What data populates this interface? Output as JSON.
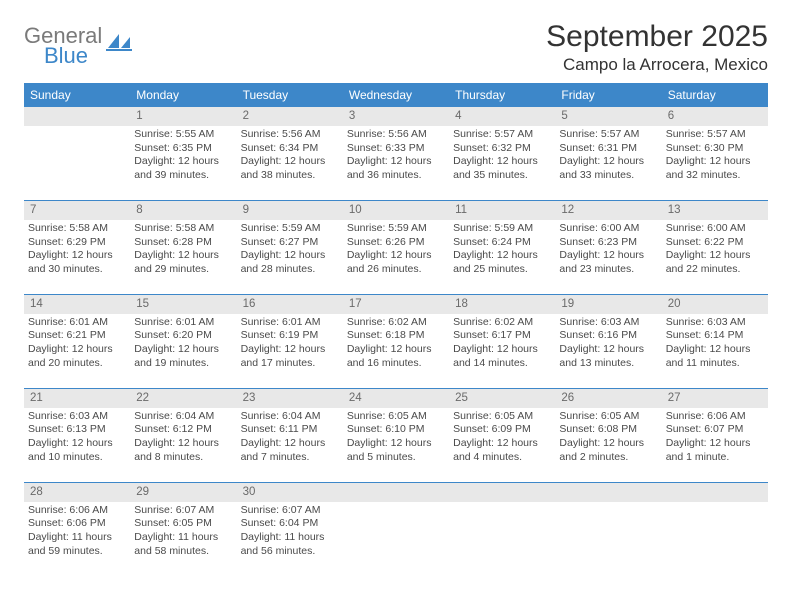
{
  "brand": {
    "line1": "General",
    "line2": "Blue",
    "logo_fill": "#3d87c9"
  },
  "title": {
    "month": "September 2025",
    "location": "Campo la Arrocera, Mexico"
  },
  "styles": {
    "header_bg": "#3d87c9",
    "header_text": "#ffffff",
    "daynum_bg": "#e8e8e8",
    "daynum_text": "#6a6a6a",
    "cell_text": "#4a4a4a",
    "title_text": "#333333",
    "rule_color": "#3d87c9",
    "logo_gray": "#7a7a7a",
    "header_fontsize": 12,
    "daynum_fontsize": 11.5,
    "body_fontsize": 10.5,
    "month_fontsize": 30,
    "location_fontsize": 17
  },
  "columns": [
    "Sunday",
    "Monday",
    "Tuesday",
    "Wednesday",
    "Thursday",
    "Friday",
    "Saturday"
  ],
  "weeks": [
    [
      null,
      {
        "n": "1",
        "sunrise": "Sunrise: 5:55 AM",
        "sunset": "Sunset: 6:35 PM",
        "day": "Daylight: 12 hours and 39 minutes."
      },
      {
        "n": "2",
        "sunrise": "Sunrise: 5:56 AM",
        "sunset": "Sunset: 6:34 PM",
        "day": "Daylight: 12 hours and 38 minutes."
      },
      {
        "n": "3",
        "sunrise": "Sunrise: 5:56 AM",
        "sunset": "Sunset: 6:33 PM",
        "day": "Daylight: 12 hours and 36 minutes."
      },
      {
        "n": "4",
        "sunrise": "Sunrise: 5:57 AM",
        "sunset": "Sunset: 6:32 PM",
        "day": "Daylight: 12 hours and 35 minutes."
      },
      {
        "n": "5",
        "sunrise": "Sunrise: 5:57 AM",
        "sunset": "Sunset: 6:31 PM",
        "day": "Daylight: 12 hours and 33 minutes."
      },
      {
        "n": "6",
        "sunrise": "Sunrise: 5:57 AM",
        "sunset": "Sunset: 6:30 PM",
        "day": "Daylight: 12 hours and 32 minutes."
      }
    ],
    [
      {
        "n": "7",
        "sunrise": "Sunrise: 5:58 AM",
        "sunset": "Sunset: 6:29 PM",
        "day": "Daylight: 12 hours and 30 minutes."
      },
      {
        "n": "8",
        "sunrise": "Sunrise: 5:58 AM",
        "sunset": "Sunset: 6:28 PM",
        "day": "Daylight: 12 hours and 29 minutes."
      },
      {
        "n": "9",
        "sunrise": "Sunrise: 5:59 AM",
        "sunset": "Sunset: 6:27 PM",
        "day": "Daylight: 12 hours and 28 minutes."
      },
      {
        "n": "10",
        "sunrise": "Sunrise: 5:59 AM",
        "sunset": "Sunset: 6:26 PM",
        "day": "Daylight: 12 hours and 26 minutes."
      },
      {
        "n": "11",
        "sunrise": "Sunrise: 5:59 AM",
        "sunset": "Sunset: 6:24 PM",
        "day": "Daylight: 12 hours and 25 minutes."
      },
      {
        "n": "12",
        "sunrise": "Sunrise: 6:00 AM",
        "sunset": "Sunset: 6:23 PM",
        "day": "Daylight: 12 hours and 23 minutes."
      },
      {
        "n": "13",
        "sunrise": "Sunrise: 6:00 AM",
        "sunset": "Sunset: 6:22 PM",
        "day": "Daylight: 12 hours and 22 minutes."
      }
    ],
    [
      {
        "n": "14",
        "sunrise": "Sunrise: 6:01 AM",
        "sunset": "Sunset: 6:21 PM",
        "day": "Daylight: 12 hours and 20 minutes."
      },
      {
        "n": "15",
        "sunrise": "Sunrise: 6:01 AM",
        "sunset": "Sunset: 6:20 PM",
        "day": "Daylight: 12 hours and 19 minutes."
      },
      {
        "n": "16",
        "sunrise": "Sunrise: 6:01 AM",
        "sunset": "Sunset: 6:19 PM",
        "day": "Daylight: 12 hours and 17 minutes."
      },
      {
        "n": "17",
        "sunrise": "Sunrise: 6:02 AM",
        "sunset": "Sunset: 6:18 PM",
        "day": "Daylight: 12 hours and 16 minutes."
      },
      {
        "n": "18",
        "sunrise": "Sunrise: 6:02 AM",
        "sunset": "Sunset: 6:17 PM",
        "day": "Daylight: 12 hours and 14 minutes."
      },
      {
        "n": "19",
        "sunrise": "Sunrise: 6:03 AM",
        "sunset": "Sunset: 6:16 PM",
        "day": "Daylight: 12 hours and 13 minutes."
      },
      {
        "n": "20",
        "sunrise": "Sunrise: 6:03 AM",
        "sunset": "Sunset: 6:14 PM",
        "day": "Daylight: 12 hours and 11 minutes."
      }
    ],
    [
      {
        "n": "21",
        "sunrise": "Sunrise: 6:03 AM",
        "sunset": "Sunset: 6:13 PM",
        "day": "Daylight: 12 hours and 10 minutes."
      },
      {
        "n": "22",
        "sunrise": "Sunrise: 6:04 AM",
        "sunset": "Sunset: 6:12 PM",
        "day": "Daylight: 12 hours and 8 minutes."
      },
      {
        "n": "23",
        "sunrise": "Sunrise: 6:04 AM",
        "sunset": "Sunset: 6:11 PM",
        "day": "Daylight: 12 hours and 7 minutes."
      },
      {
        "n": "24",
        "sunrise": "Sunrise: 6:05 AM",
        "sunset": "Sunset: 6:10 PM",
        "day": "Daylight: 12 hours and 5 minutes."
      },
      {
        "n": "25",
        "sunrise": "Sunrise: 6:05 AM",
        "sunset": "Sunset: 6:09 PM",
        "day": "Daylight: 12 hours and 4 minutes."
      },
      {
        "n": "26",
        "sunrise": "Sunrise: 6:05 AM",
        "sunset": "Sunset: 6:08 PM",
        "day": "Daylight: 12 hours and 2 minutes."
      },
      {
        "n": "27",
        "sunrise": "Sunrise: 6:06 AM",
        "sunset": "Sunset: 6:07 PM",
        "day": "Daylight: 12 hours and 1 minute."
      }
    ],
    [
      {
        "n": "28",
        "sunrise": "Sunrise: 6:06 AM",
        "sunset": "Sunset: 6:06 PM",
        "day": "Daylight: 11 hours and 59 minutes."
      },
      {
        "n": "29",
        "sunrise": "Sunrise: 6:07 AM",
        "sunset": "Sunset: 6:05 PM",
        "day": "Daylight: 11 hours and 58 minutes."
      },
      {
        "n": "30",
        "sunrise": "Sunrise: 6:07 AM",
        "sunset": "Sunset: 6:04 PM",
        "day": "Daylight: 11 hours and 56 minutes."
      },
      null,
      null,
      null,
      null
    ]
  ]
}
